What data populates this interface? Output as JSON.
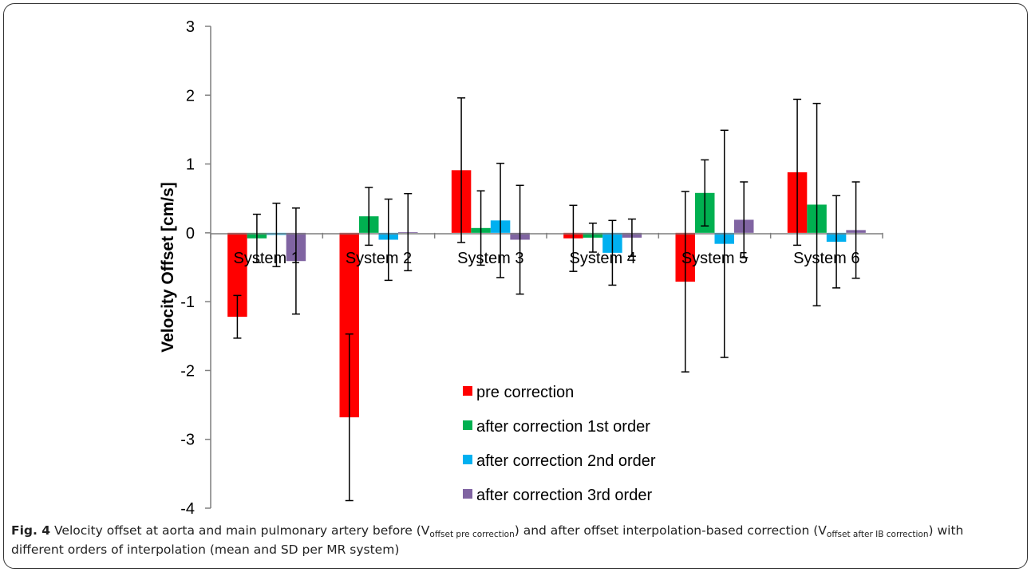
{
  "chart_data": {
    "type": "bar",
    "ylabel": "Velocity Offset [cm/s]",
    "xlabel": "",
    "ylim": [
      -4,
      3
    ],
    "yticks": [
      "3",
      "2",
      "1",
      "0",
      "-1",
      "-2",
      "-3",
      "-4"
    ],
    "categories": [
      "System 1",
      "System 2",
      "System 3",
      "System 4",
      "System 5",
      "System 6"
    ],
    "series": [
      {
        "name": "pre correction",
        "color": "#ff0000",
        "values": [
          -1.22,
          -2.68,
          0.91,
          -0.08,
          -0.71,
          0.88
        ],
        "errors": [
          0.31,
          1.21,
          1.05,
          0.48,
          1.31,
          1.06
        ]
      },
      {
        "name": "after correction 1st order",
        "color": "#00b050",
        "values": [
          -0.08,
          0.24,
          0.07,
          -0.07,
          0.58,
          0.41
        ],
        "errors": [
          0.35,
          0.42,
          0.54,
          0.21,
          0.48,
          1.47
        ]
      },
      {
        "name": "after correction 2nd order",
        "color": "#00b0f0",
        "values": [
          -0.03,
          -0.1,
          0.18,
          -0.29,
          -0.16,
          -0.13
        ],
        "errors": [
          0.46,
          0.59,
          0.83,
          0.47,
          1.65,
          0.67
        ]
      },
      {
        "name": "after correction 3rd order",
        "color": "#8064a2",
        "values": [
          -0.41,
          0.01,
          -0.1,
          -0.07,
          0.19,
          0.04
        ],
        "errors": [
          0.77,
          0.56,
          0.79,
          0.27,
          0.55,
          0.7
        ]
      }
    ],
    "legend_position": "bottom-center",
    "grid": false
  },
  "caption": {
    "label": "Fig. 4",
    "text1": " Velocity offset at aorta and main pulmonary artery before (V",
    "sub1": "offset pre correction",
    "text2": ") and after offset interpolation-based correction (V",
    "sub2": "offset after IB correction",
    "text3": ") with different orders of interpolation (mean and SD per MR system)"
  }
}
